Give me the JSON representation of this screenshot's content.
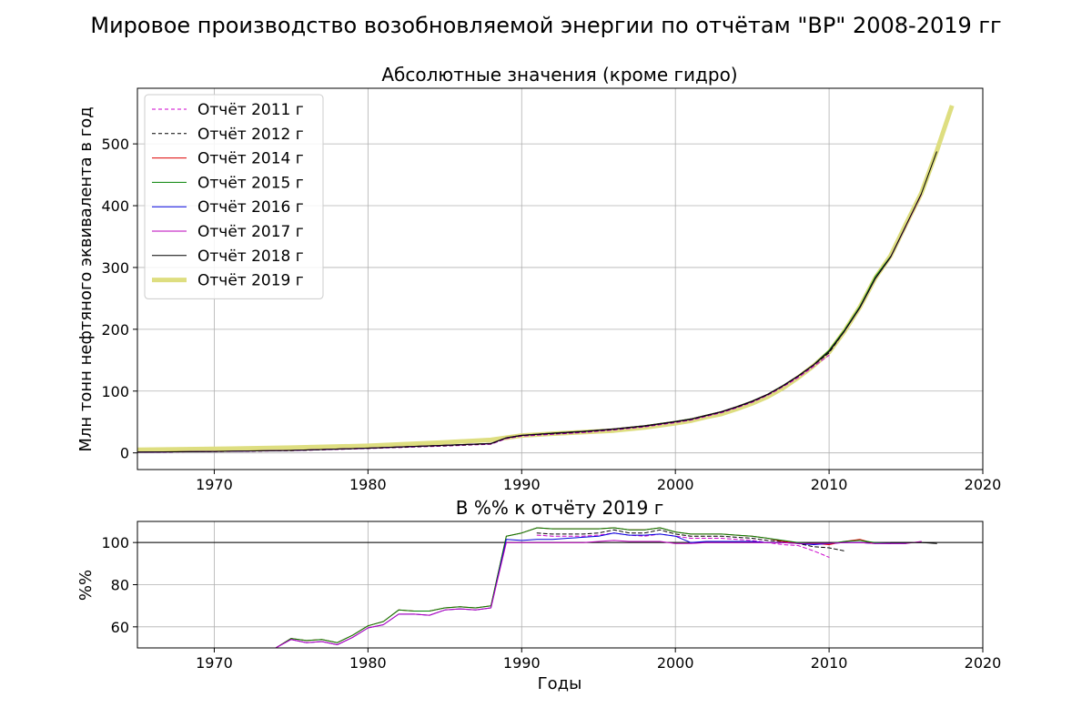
{
  "suptitle": "Мировое производство возобновляемой энергии по отчётам \"BP\" 2008-2019 гг",
  "chart_data": [
    {
      "type": "line",
      "title": "Абсолютные значения (кроме гидро)",
      "xlabel": "",
      "ylabel": "Млн тонн нефтяного эквивалента в год",
      "xlim": [
        1965,
        2020
      ],
      "ylim": [
        -27,
        590
      ],
      "xticks": [
        1970,
        1980,
        1990,
        2000,
        2010,
        2020
      ],
      "yticks": [
        0,
        100,
        200,
        300,
        400,
        500
      ],
      "grid": true,
      "legend_position": "top-left",
      "series": [
        {
          "name": "Отчёт 2011 г",
          "color": "#cc00cc",
          "dash": "4,3",
          "width": 1,
          "x": [
            1965,
            1970,
            1975,
            1980,
            1985,
            1988,
            1989,
            1990,
            1992,
            1994,
            1996,
            1998,
            2000,
            2001,
            2002,
            2003,
            2004,
            2005,
            2006,
            2007,
            2008,
            2009,
            2010
          ],
          "y": [
            1,
            2,
            3.5,
            7,
            11,
            14,
            23,
            27,
            30,
            33,
            37,
            42,
            49,
            53,
            59,
            65,
            73,
            82,
            93,
            107,
            122,
            140,
            158
          ]
        },
        {
          "name": "Отчёт 2012 г",
          "color": "#000000",
          "dash": "4,3",
          "width": 1,
          "x": [
            1965,
            1970,
            1975,
            1980,
            1985,
            1988,
            1989,
            1990,
            1992,
            1994,
            1996,
            1998,
            2000,
            2001,
            2002,
            2003,
            2004,
            2005,
            2006,
            2007,
            2008,
            2009,
            2010,
            2011
          ],
          "y": [
            1.1,
            2.2,
            3.7,
            7.3,
            11.5,
            14.5,
            24,
            28,
            31,
            34,
            38,
            43,
            50,
            54,
            60,
            66,
            74,
            83,
            94,
            108,
            124,
            142,
            162,
            197
          ]
        },
        {
          "name": "Отчёт 2014 г",
          "color": "#dd0000",
          "dash": "",
          "width": 1,
          "x": [
            1965,
            1970,
            1975,
            1980,
            1985,
            1988,
            1989,
            1990,
            1992,
            1994,
            1996,
            1998,
            2000,
            2001,
            2002,
            2003,
            2004,
            2005,
            2006,
            2007,
            2008,
            2009,
            2010,
            2011,
            2012,
            2013
          ],
          "y": [
            1.2,
            2.4,
            4,
            7.8,
            12.5,
            15.3,
            24.5,
            28.5,
            32,
            35,
            39,
            44,
            51,
            55,
            61,
            67,
            75,
            84,
            95,
            109,
            125,
            143,
            165,
            198,
            236,
            283
          ]
        },
        {
          "name": "Отчёт 2015 г",
          "color": "#008000",
          "dash": "",
          "width": 1,
          "x": [
            1965,
            1970,
            1975,
            1980,
            1985,
            1988,
            1989,
            1990,
            1992,
            1994,
            1996,
            1998,
            2000,
            2001,
            2002,
            2003,
            2004,
            2005,
            2006,
            2007,
            2008,
            2009,
            2010,
            2011,
            2012,
            2013,
            2014
          ],
          "y": [
            1.2,
            2.4,
            4,
            7.8,
            12.5,
            15.4,
            24.6,
            28.6,
            32,
            35,
            39,
            44,
            51,
            55,
            61,
            67,
            75,
            84,
            95,
            109,
            125,
            143,
            166,
            199,
            237,
            285,
            318
          ]
        },
        {
          "name": "Отчёт 2016 г",
          "color": "#0000dd",
          "dash": "",
          "width": 1,
          "x": [
            1965,
            1970,
            1975,
            1980,
            1985,
            1988,
            1989,
            1990,
            1992,
            1994,
            1996,
            1998,
            2000,
            2001,
            2002,
            2003,
            2004,
            2005,
            2006,
            2007,
            2008,
            2009,
            2010,
            2011,
            2012,
            2013,
            2014,
            2015
          ],
          "y": [
            1.1,
            2.3,
            3.9,
            7.6,
            12.2,
            15,
            24.3,
            28.2,
            31.5,
            34.6,
            38.6,
            43.5,
            50.5,
            54.5,
            60.5,
            66.5,
            74.5,
            83.5,
            94.5,
            108.5,
            124.5,
            142.5,
            164,
            197,
            235,
            282,
            317,
            367
          ]
        },
        {
          "name": "Отчёт 2017 г",
          "color": "#bb00bb",
          "dash": "",
          "width": 1,
          "x": [
            1965,
            1970,
            1975,
            1980,
            1985,
            1988,
            1989,
            1990,
            1992,
            1994,
            1996,
            1998,
            2000,
            2001,
            2002,
            2003,
            2004,
            2005,
            2006,
            2007,
            2008,
            2009,
            2010,
            2011,
            2012,
            2013,
            2014,
            2015,
            2016
          ],
          "y": [
            1.1,
            2.3,
            3.9,
            7.6,
            12.2,
            15,
            24.3,
            28.2,
            31.5,
            34.6,
            38.6,
            43.5,
            50.5,
            54.5,
            60.5,
            66.5,
            74.5,
            83.5,
            94.5,
            108.5,
            124.5,
            142.5,
            164,
            197,
            235,
            282,
            317,
            367,
            418
          ]
        },
        {
          "name": "Отчёт 2018 г",
          "color": "#000000",
          "dash": "",
          "width": 1,
          "x": [
            1965,
            1970,
            1975,
            1980,
            1985,
            1988,
            1989,
            1990,
            1992,
            1994,
            1996,
            1998,
            2000,
            2001,
            2002,
            2003,
            2004,
            2005,
            2006,
            2007,
            2008,
            2009,
            2010,
            2011,
            2012,
            2013,
            2014,
            2015,
            2016,
            2017
          ],
          "y": [
            1.1,
            2.3,
            3.9,
            7.6,
            12.2,
            15,
            24.3,
            28.2,
            31.5,
            34.6,
            38.6,
            43.5,
            50.5,
            54.5,
            60.5,
            66.5,
            74.5,
            83.5,
            94.5,
            108.5,
            124.5,
            142.5,
            164,
            197,
            235,
            282,
            317,
            368,
            419,
            487
          ]
        },
        {
          "name": "Отчёт 2019 г",
          "color": "#dede80",
          "dash": "",
          "width": 5,
          "x": [
            1965,
            1970,
            1975,
            1980,
            1985,
            1988,
            1989,
            1990,
            1992,
            1994,
            1996,
            1998,
            2000,
            2001,
            2002,
            2003,
            2004,
            2005,
            2006,
            2007,
            2008,
            2009,
            2010,
            2011,
            2012,
            2013,
            2014,
            2015,
            2016,
            2017,
            2018
          ],
          "y": [
            5,
            6.5,
            8.5,
            11.5,
            17,
            21,
            24.5,
            28,
            31,
            33.5,
            36,
            41,
            48,
            52,
            58,
            63,
            71,
            80,
            91,
            105,
            122,
            141,
            163,
            197,
            236,
            283,
            319,
            370,
            420,
            488,
            562
          ]
        }
      ]
    },
    {
      "type": "line",
      "title": "В %% к отчёту 2019 г",
      "xlabel": "Годы",
      "ylabel": "%%",
      "xlim": [
        1965,
        2020
      ],
      "ylim": [
        50,
        110
      ],
      "xticks": [
        1970,
        1980,
        1990,
        2000,
        2010,
        2020
      ],
      "yticks": [
        60,
        80,
        100
      ],
      "grid": true,
      "hline": 100,
      "series": [
        {
          "name": "Отчёт 2011 г",
          "color": "#cc00cc",
          "dash": "4,3",
          "width": 1,
          "x": [
            1991,
            1992,
            1993,
            1994,
            1995,
            1996,
            1997,
            1998,
            1999,
            2000,
            2001,
            2002,
            2003,
            2004,
            2005,
            2006,
            2007,
            2008,
            2009,
            2010
          ],
          "y": [
            103.5,
            103,
            103,
            103,
            103.5,
            104.5,
            103.5,
            103,
            104,
            103,
            102,
            102,
            102,
            101.5,
            101,
            100,
            99,
            98.5,
            96,
            93
          ]
        },
        {
          "name": "Отчёт 2012 г",
          "color": "#000000",
          "dash": "4,3",
          "width": 1,
          "x": [
            1991,
            1992,
            1993,
            1994,
            1995,
            1996,
            1997,
            1998,
            1999,
            2000,
            2001,
            2002,
            2003,
            2004,
            2005,
            2006,
            2007,
            2008,
            2009,
            2010,
            2011
          ],
          "y": [
            104.5,
            104,
            104,
            104,
            104.5,
            106,
            104.5,
            104.5,
            106,
            104,
            103,
            103,
            103,
            102.5,
            102,
            101,
            100.5,
            99.5,
            98,
            97.5,
            96
          ]
        },
        {
          "name": "Отчёт 2014 г",
          "color": "#dd0000",
          "dash": "",
          "width": 1,
          "x": [
            1974,
            1975,
            1976,
            1977,
            1978,
            1979,
            1980,
            1981,
            1982,
            1983,
            1984,
            1985,
            1986,
            1987,
            1988,
            1989,
            1990,
            1991,
            1992,
            1993,
            1994,
            1995,
            1996,
            1997,
            1998,
            1999,
            2000,
            2001,
            2002,
            2003,
            2004,
            2005,
            2006,
            2007,
            2008,
            2009,
            2010,
            2011,
            2012,
            2013
          ],
          "y": [
            50,
            54.5,
            53.5,
            54,
            52.5,
            56,
            60.5,
            62.5,
            68,
            67.5,
            67.5,
            69,
            69.5,
            69,
            70,
            103,
            104.5,
            107,
            106.5,
            106.5,
            106.5,
            106.5,
            107,
            106,
            106,
            107,
            105,
            104,
            104,
            104,
            103.5,
            103,
            102,
            100.5,
            99.5,
            99.5,
            99,
            100.5,
            101.5,
            99.5
          ]
        },
        {
          "name": "Отчёт 2015 г",
          "color": "#008000",
          "dash": "",
          "width": 1,
          "x": [
            1974,
            1975,
            1976,
            1977,
            1978,
            1979,
            1980,
            1981,
            1982,
            1983,
            1984,
            1985,
            1986,
            1987,
            1988,
            1989,
            1990,
            1991,
            1992,
            1993,
            1994,
            1995,
            1996,
            1997,
            1998,
            1999,
            2000,
            2001,
            2002,
            2003,
            2004,
            2005,
            2006,
            2007,
            2008,
            2009,
            2010,
            2011,
            2012,
            2013,
            2014
          ],
          "y": [
            50,
            54.5,
            53.5,
            54,
            52.5,
            56,
            60.5,
            62.5,
            68,
            67.5,
            67.5,
            69,
            69.5,
            69,
            70,
            103,
            104.5,
            107,
            106.5,
            106.5,
            106.5,
            106.5,
            107,
            106,
            106,
            107,
            105,
            104,
            104,
            104,
            103.5,
            103,
            102,
            101,
            100,
            99.5,
            99.5,
            100.5,
            101,
            100,
            99.5
          ]
        },
        {
          "name": "Отчёт 2016 г",
          "color": "#0000dd",
          "dash": "",
          "width": 1,
          "x": [
            1974,
            1975,
            1976,
            1977,
            1978,
            1979,
            1980,
            1981,
            1982,
            1983,
            1984,
            1985,
            1986,
            1987,
            1988,
            1989,
            1990,
            1991,
            1992,
            1993,
            1994,
            1995,
            1996,
            1997,
            1998,
            1999,
            2000,
            2001,
            2002,
            2003,
            2004,
            2005,
            2006,
            2007,
            2008,
            2009,
            2010,
            2011,
            2012,
            2013,
            2014,
            2015
          ],
          "y": [
            50,
            54,
            52.5,
            53,
            51.5,
            55,
            59.5,
            61,
            66,
            66,
            65.5,
            68,
            68.5,
            68,
            69,
            101.5,
            101,
            101.5,
            101.5,
            102,
            102.5,
            103,
            104.5,
            103.5,
            103.5,
            104,
            103,
            100,
            100.5,
            100.5,
            100.5,
            100.5,
            100,
            100,
            99.5,
            99,
            99.5,
            100,
            100,
            99.5,
            99.5,
            99.5
          ]
        },
        {
          "name": "Отчёт 2017 г",
          "color": "#bb00bb",
          "dash": "",
          "width": 1,
          "x": [
            1974,
            1975,
            1976,
            1977,
            1978,
            1979,
            1980,
            1981,
            1982,
            1983,
            1984,
            1985,
            1986,
            1987,
            1988,
            1989,
            1990,
            1991,
            1992,
            1993,
            1994,
            1995,
            1996,
            1997,
            1998,
            1999,
            2000,
            2001,
            2002,
            2003,
            2004,
            2005,
            2006,
            2007,
            2008,
            2009,
            2010,
            2011,
            2012,
            2013,
            2014,
            2015,
            2016
          ],
          "y": [
            50,
            54,
            52.5,
            53,
            51.5,
            55,
            59.5,
            61,
            66,
            66,
            65.5,
            68,
            68.5,
            68,
            69,
            100,
            100,
            100,
            100,
            100,
            100,
            100.5,
            101,
            100.5,
            100.5,
            100.5,
            99.5,
            99.5,
            100,
            100,
            100,
            100,
            100,
            100,
            99.5,
            99.5,
            99.5,
            100,
            100,
            99.5,
            99.5,
            99.5,
            100.5
          ]
        },
        {
          "name": "Отчёт 2018 г",
          "color": "#000000",
          "dash": "",
          "width": 1,
          "x": [
            2014,
            2015,
            2016,
            2017
          ],
          "y": [
            100,
            100,
            100,
            99.5
          ]
        }
      ]
    }
  ]
}
